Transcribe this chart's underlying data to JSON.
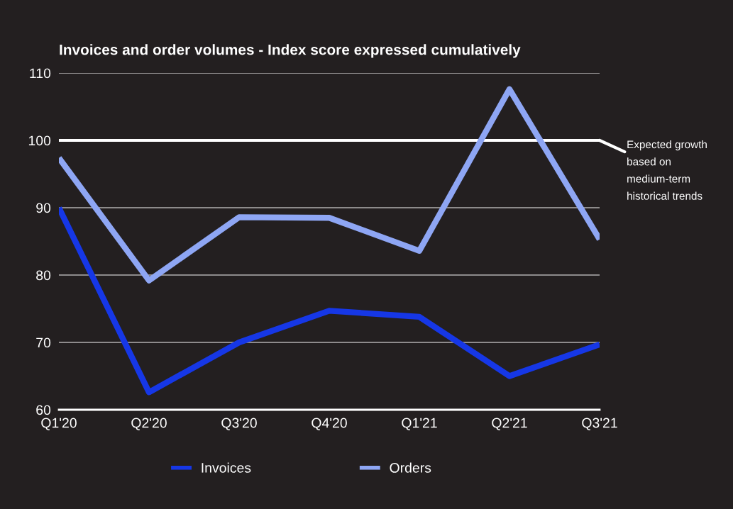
{
  "chart_data": {
    "type": "line",
    "title": "Invoices and order volumes - Index score expressed cumulatively",
    "categories": [
      "Q1'20",
      "Q2'20",
      "Q3'20",
      "Q4'20",
      "Q1'21",
      "Q2'21",
      "Q3'21"
    ],
    "series": [
      {
        "name": "Invoices",
        "color": "#1637e6",
        "values": [
          90,
          62.6,
          70,
          74.7,
          73.8,
          65,
          69.7
        ]
      },
      {
        "name": "Orders",
        "color": "#8ea6f4",
        "values": [
          97.4,
          79.2,
          88.6,
          88.5,
          83.6,
          107.6,
          85.3
        ]
      }
    ],
    "ylim": [
      60,
      110
    ],
    "yticks": [
      60,
      70,
      80,
      90,
      100,
      110
    ],
    "grid": "y",
    "legend": "bottom",
    "marker": "none",
    "line_style": "solid",
    "ref_lines": [
      {
        "axis": "y",
        "value": 100,
        "label": "Expected growth based on medium-term historical trends",
        "color": "#ffffff"
      }
    ]
  }
}
